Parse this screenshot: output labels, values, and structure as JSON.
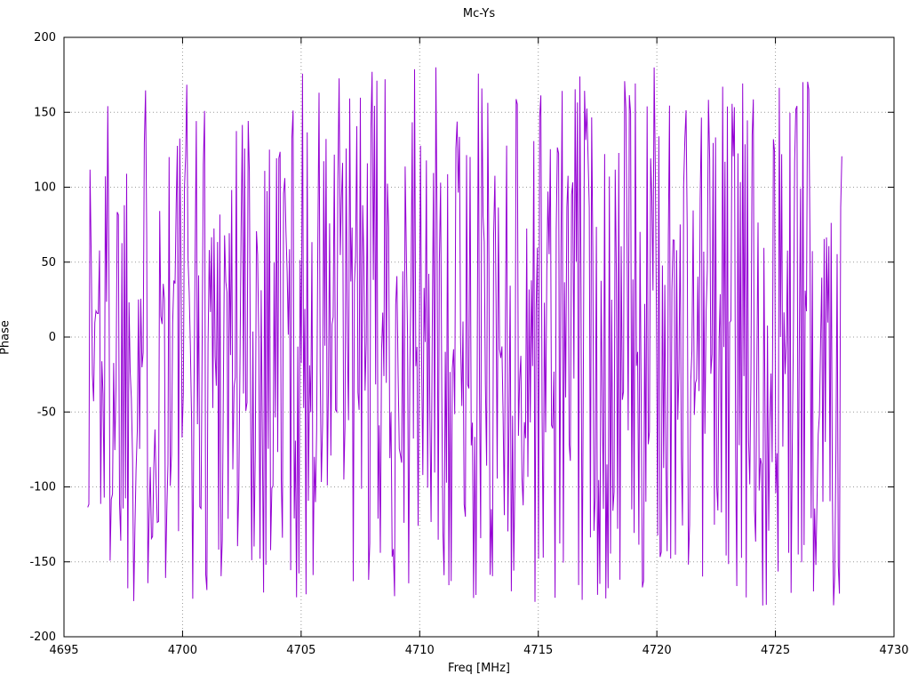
{
  "chart_data": {
    "type": "line",
    "title": "Mc-Ys",
    "xlabel": "Freq [MHz]",
    "ylabel": "Phase",
    "xlim": [
      4695,
      4730
    ],
    "ylim": [
      -200,
      200
    ],
    "x_ticks": [
      4695,
      4700,
      4705,
      4710,
      4715,
      4720,
      4725,
      4730
    ],
    "y_ticks": [
      -200,
      -150,
      -100,
      -50,
      0,
      50,
      100,
      150,
      200
    ],
    "grid": true,
    "grid_style": "dotted",
    "legend": "none",
    "background_color": "#ffffff",
    "grid_color": "#9a9a9a",
    "axis_color": "#000000",
    "series": [
      {
        "name": "Mc-Ys",
        "color": "#9400d3",
        "points": "synthetic-wrapped-phase-noise",
        "x_start": 4696.0,
        "x_end": 4727.8,
        "n_points": 640,
        "y_min": -180,
        "y_max": 180,
        "distribution": "uniform",
        "seed": 1337
      }
    ]
  }
}
